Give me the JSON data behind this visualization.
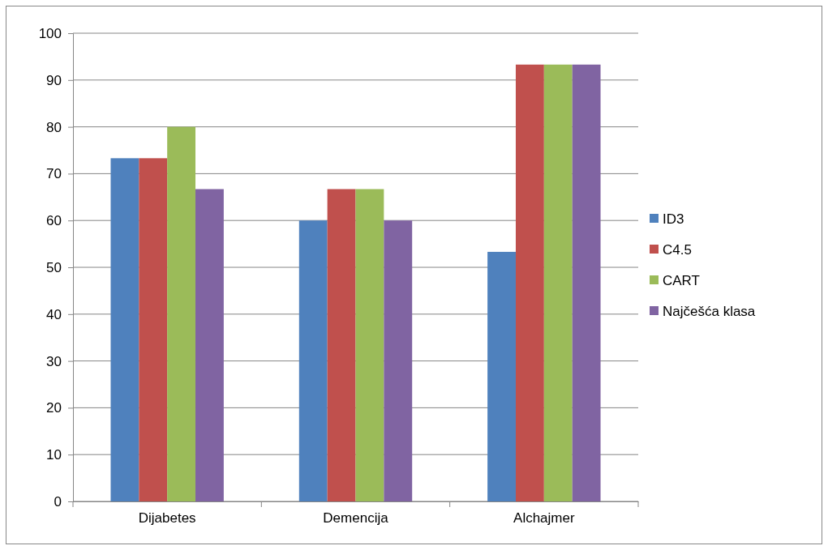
{
  "chart_data": {
    "type": "bar",
    "categories": [
      "Dijabetes",
      "Demencija",
      "Alchajmer"
    ],
    "series": [
      {
        "name": "ID3",
        "color": "#4f81bd",
        "values": [
          73.3,
          60,
          53.3
        ]
      },
      {
        "name": "C4.5",
        "color": "#c0504d",
        "values": [
          73.3,
          66.7,
          93.3
        ]
      },
      {
        "name": "CART",
        "color": "#9bbb59",
        "values": [
          80,
          66.7,
          93.3
        ]
      },
      {
        "name": "Najčešća klasa",
        "color": "#8064a2",
        "values": [
          66.7,
          60,
          93.3
        ]
      }
    ],
    "ylim": [
      0,
      100
    ],
    "yticks": [
      0,
      10,
      20,
      30,
      40,
      50,
      60,
      70,
      80,
      90,
      100
    ],
    "grid": "y",
    "legend": "right"
  }
}
